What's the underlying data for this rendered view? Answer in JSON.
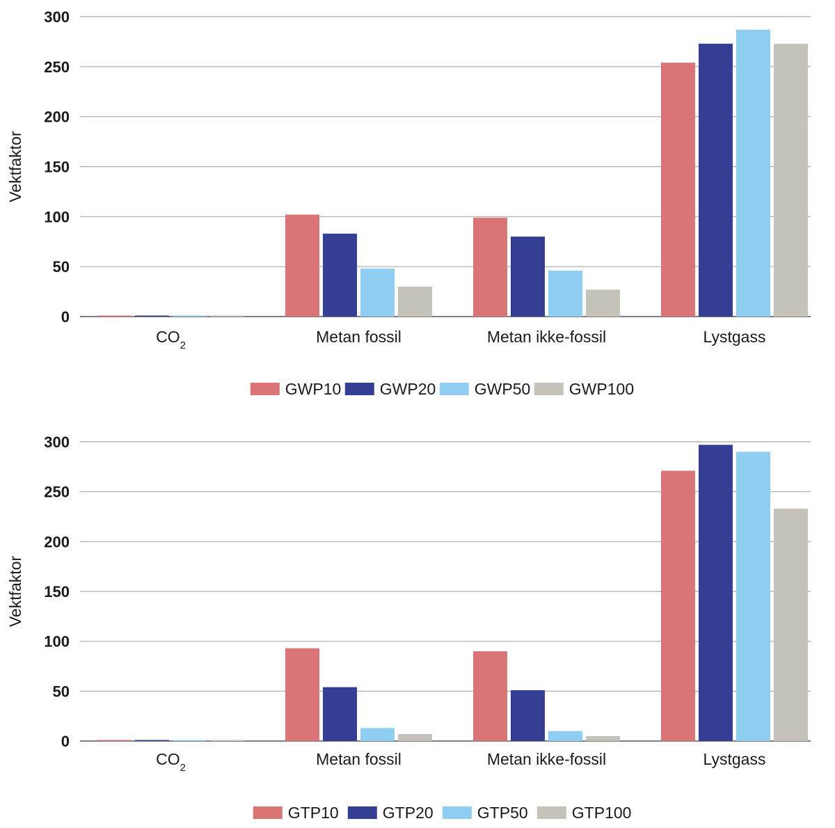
{
  "chart_data": [
    {
      "type": "bar",
      "ylabel": "Vektfaktor",
      "xlabel": "",
      "ylim": [
        0,
        300
      ],
      "yticks": [
        "0",
        "50",
        "100",
        "150",
        "200",
        "250",
        "300"
      ],
      "categories": [
        {
          "base": "CO",
          "sub": "2"
        },
        {
          "base": "Metan fossil",
          "sub": ""
        },
        {
          "base": "Metan ikke-fossil",
          "sub": ""
        },
        {
          "base": "Lystgass",
          "sub": ""
        }
      ],
      "series": [
        {
          "name": "GWP10",
          "color": "#d97576",
          "values": [
            1,
            102,
            99,
            254
          ]
        },
        {
          "name": "GWP20",
          "color": "#343f94",
          "values": [
            1,
            83,
            80,
            273
          ]
        },
        {
          "name": "GWP50",
          "color": "#8fcdf3",
          "values": [
            1,
            48,
            46,
            287
          ]
        },
        {
          "name": "GWP100",
          "color": "#c5c2b9",
          "values": [
            1,
            30,
            27,
            273
          ]
        }
      ],
      "legend": "bottom-center"
    },
    {
      "type": "bar",
      "ylabel": "Vektfaktor",
      "xlabel": "",
      "ylim": [
        0,
        300
      ],
      "yticks": [
        "0",
        "50",
        "100",
        "150",
        "200",
        "250",
        "300"
      ],
      "categories": [
        {
          "base": "CO",
          "sub": "2"
        },
        {
          "base": "Metan fossil",
          "sub": ""
        },
        {
          "base": "Metan ikke-fossil",
          "sub": ""
        },
        {
          "base": "Lystgass",
          "sub": ""
        }
      ],
      "series": [
        {
          "name": "GTP10",
          "color": "#d97576",
          "values": [
            1,
            93,
            90,
            271
          ]
        },
        {
          "name": "GTP20",
          "color": "#343f94",
          "values": [
            1,
            54,
            51,
            297
          ]
        },
        {
          "name": "GTP50",
          "color": "#8fcdf3",
          "values": [
            1,
            13,
            10,
            290
          ]
        },
        {
          "name": "GTP100",
          "color": "#c5c2b9",
          "values": [
            1,
            7,
            5,
            233
          ]
        }
      ],
      "legend": "bottom-center"
    }
  ]
}
